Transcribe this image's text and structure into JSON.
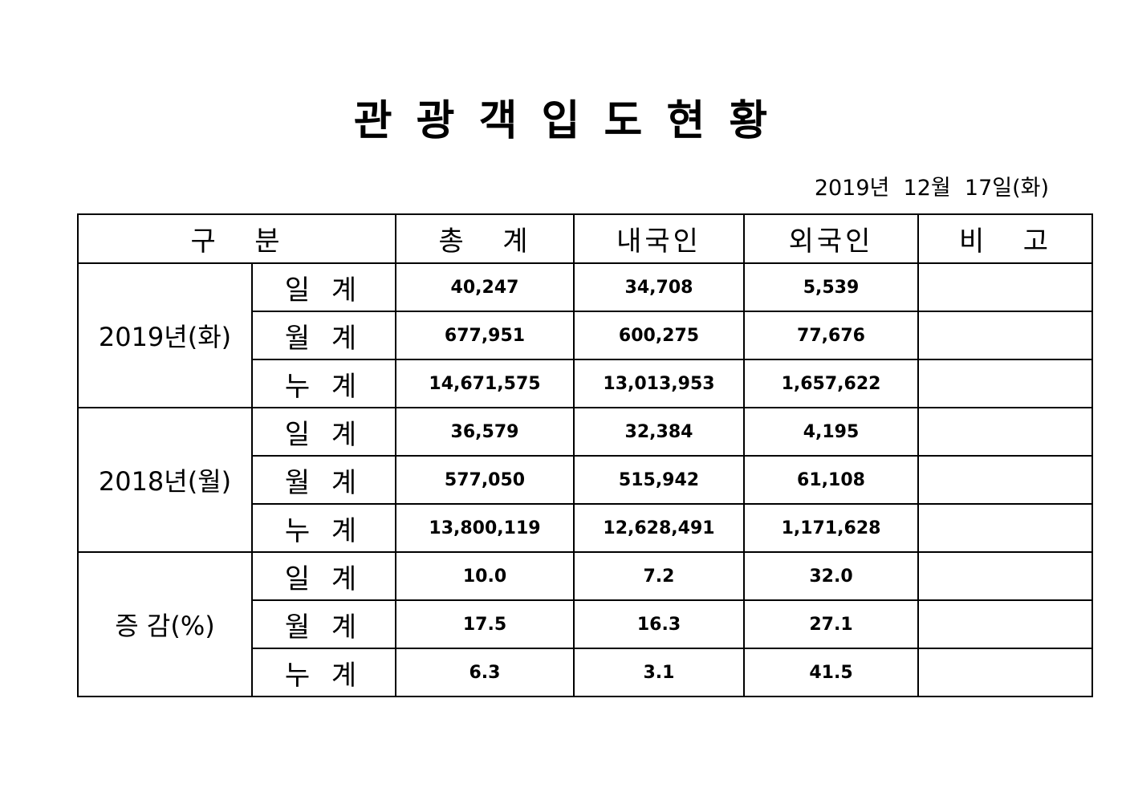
{
  "title": "관 광 객 입 도 현 황",
  "date": "2019년  12월  17일(화)",
  "table": {
    "header": [
      "구   분",
      "총   계",
      "내국인",
      "외국인",
      "비   고"
    ],
    "groups": [
      {
        "label": "2019년(화)",
        "rows": [
          {
            "label": "일 계",
            "values": [
              "40,247",
              "34,708",
              "5,539"
            ]
          },
          {
            "label": "월 계",
            "values": [
              "677,951",
              "600,275",
              "77,676"
            ]
          },
          {
            "label": "누 계",
            "values": [
              "14,671,575",
              "13,013,953",
              "1,657,622"
            ]
          }
        ]
      },
      {
        "label": "2018년(월)",
        "rows": [
          {
            "label": "일 계",
            "values": [
              "36,579",
              "32,384",
              "4,195"
            ]
          },
          {
            "label": "월 계",
            "values": [
              "577,050",
              "515,942",
              "61,108"
            ]
          },
          {
            "label": "누 계",
            "values": [
              "13,800,119",
              "12,628,491",
              "1,171,628"
            ]
          }
        ]
      },
      {
        "label": "증 감(%)",
        "rows": [
          {
            "label": "일 계",
            "values": [
              "10.0",
              "7.2",
              "32.0"
            ]
          },
          {
            "label": "월 계",
            "values": [
              "17.5",
              "16.3",
              "27.1"
            ]
          },
          {
            "label": "누 계",
            "values": [
              "6.3",
              "3.1",
              "41.5"
            ]
          }
        ]
      }
    ]
  }
}
